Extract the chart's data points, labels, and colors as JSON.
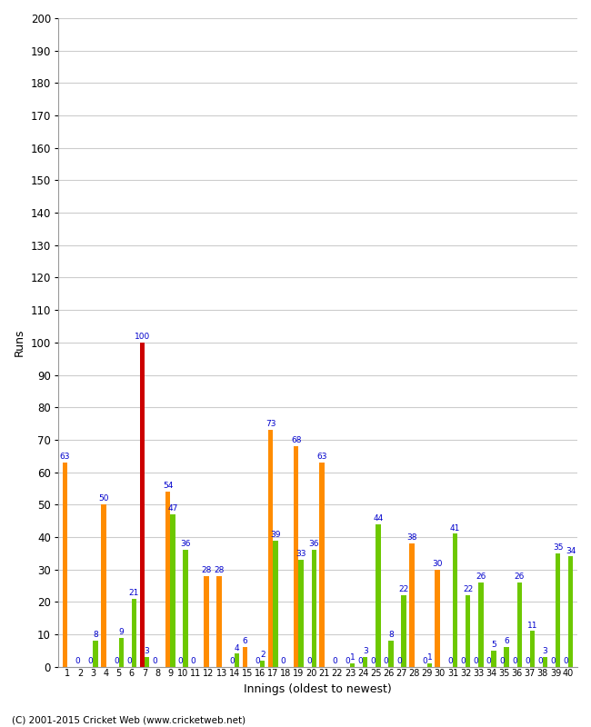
{
  "innings": [
    1,
    2,
    3,
    4,
    5,
    6,
    7,
    8,
    9,
    10,
    11,
    12,
    13,
    14,
    15,
    16,
    17,
    18,
    19,
    20,
    21,
    22,
    23,
    24,
    25,
    26,
    27,
    28,
    29,
    30,
    31,
    32,
    33,
    34,
    35,
    36,
    37,
    38,
    39,
    40
  ],
  "orange_vals": [
    63,
    0,
    0,
    50,
    0,
    0,
    100,
    0,
    54,
    0,
    0,
    28,
    28,
    0,
    6,
    0,
    73,
    0,
    68,
    0,
    63,
    0,
    0,
    0,
    0,
    0,
    0,
    38,
    0,
    30,
    0,
    0,
    0,
    0,
    0,
    0,
    0,
    0,
    0,
    0
  ],
  "green_vals": [
    0,
    0,
    8,
    0,
    9,
    21,
    3,
    0,
    47,
    36,
    0,
    0,
    0,
    4,
    0,
    2,
    39,
    0,
    33,
    36,
    0,
    0,
    1,
    3,
    44,
    8,
    22,
    0,
    1,
    0,
    41,
    22,
    26,
    5,
    6,
    26,
    11,
    3,
    35,
    34
  ],
  "orange_color": "#FF8C00",
  "green_color": "#6DC800",
  "red_color": "#CC0000",
  "century_idx": 6,
  "label_color": "#0000CC",
  "bg_color": "#FFFFFF",
  "grid_color": "#CCCCCC",
  "xlabel": "Innings (oldest to newest)",
  "ylabel": "Runs",
  "ylim": [
    0,
    200
  ],
  "yticks": [
    0,
    10,
    20,
    30,
    40,
    50,
    60,
    70,
    80,
    90,
    100,
    110,
    120,
    130,
    140,
    150,
    160,
    170,
    180,
    190,
    200
  ],
  "copyright": "(C) 2001-2015 Cricket Web (www.cricketweb.net)"
}
